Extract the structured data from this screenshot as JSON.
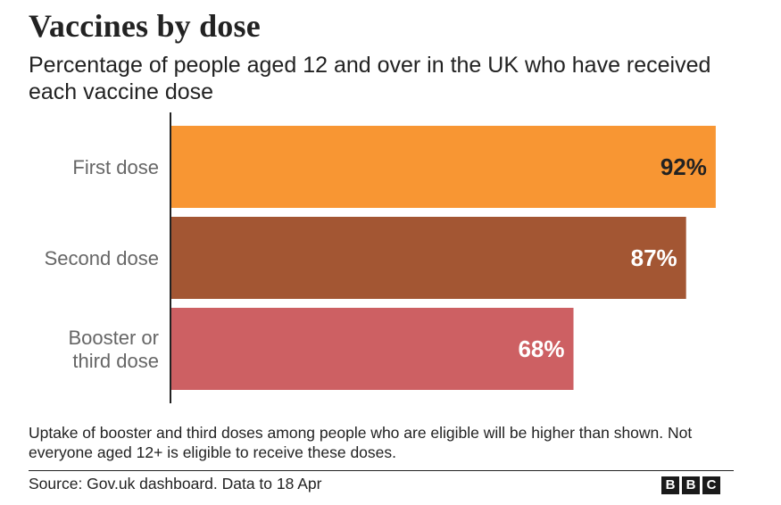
{
  "title": "Vaccines by dose",
  "subtitle": "Percentage of people aged 12 and over in the UK who have received each vaccine dose",
  "note": "Uptake of booster and third doses among people who are eligible will be higher than shown. Not everyone aged 12+ is eligible to receive these doses.",
  "source": "Source: Gov.uk dashboard. Data to 18 Apr",
  "logo": {
    "letters": [
      "B",
      "B",
      "C"
    ]
  },
  "chart_data": {
    "type": "bar",
    "orientation": "horizontal",
    "categories": [
      "First dose",
      "Second dose",
      "Booster or third dose"
    ],
    "category_label_lines": [
      [
        "First dose"
      ],
      [
        "Second dose"
      ],
      [
        "Booster or",
        "third dose"
      ]
    ],
    "values": [
      92,
      87,
      68
    ],
    "value_labels": [
      "92%",
      "87%",
      "68%"
    ],
    "unit": "%",
    "colors": [
      "#f89633",
      "#a35633",
      "#cd6063"
    ],
    "value_label_colors": [
      "#222222",
      "#ffffff",
      "#ffffff"
    ],
    "xlim": [
      0,
      100
    ],
    "grid": false,
    "legend": "none"
  }
}
